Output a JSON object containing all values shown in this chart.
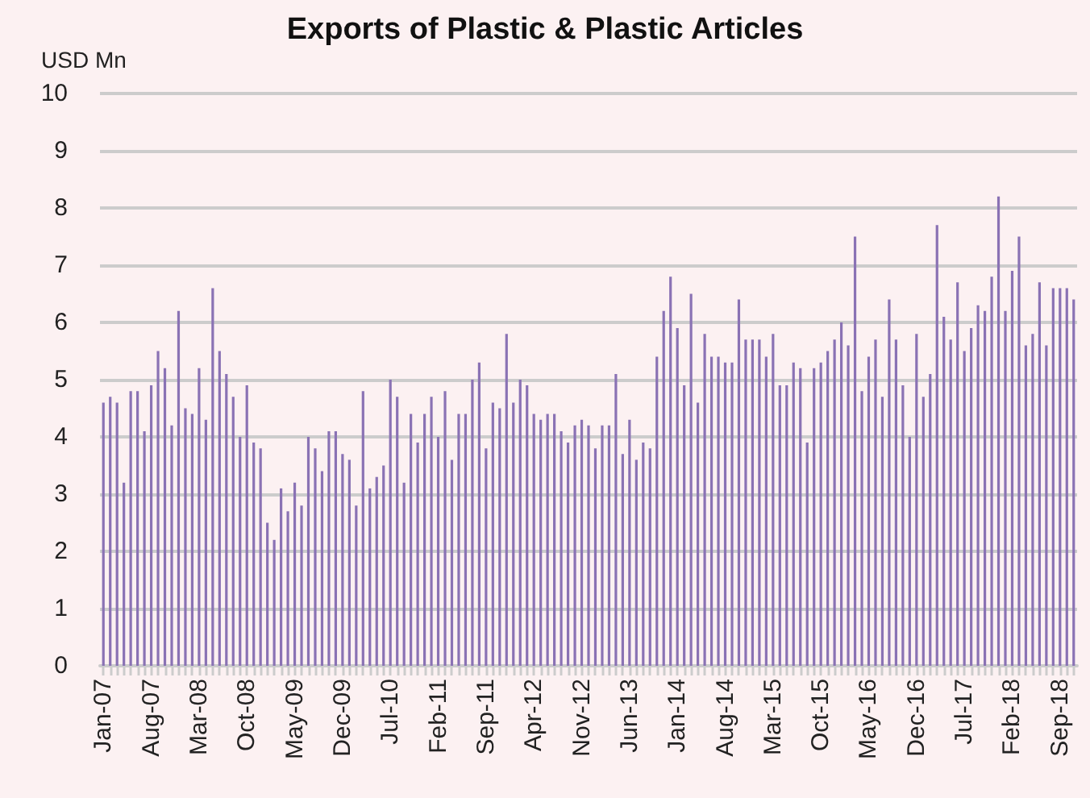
{
  "chart_data": {
    "type": "bar",
    "title": "Exports of Plastic & Plastic Articles",
    "ylabel": "USD Mn",
    "categories": [
      "Jan-07",
      null,
      null,
      null,
      null,
      null,
      null,
      "Aug-07",
      null,
      null,
      null,
      null,
      null,
      null,
      "Mar-08",
      null,
      null,
      null,
      null,
      null,
      null,
      "Oct-08",
      null,
      null,
      null,
      null,
      null,
      null,
      "May-09",
      null,
      null,
      null,
      null,
      null,
      null,
      "Dec-09",
      null,
      null,
      null,
      null,
      null,
      null,
      "Jul-10",
      null,
      null,
      null,
      null,
      null,
      null,
      "Feb-11",
      null,
      null,
      null,
      null,
      null,
      null,
      "Sep-11",
      null,
      null,
      null,
      null,
      null,
      null,
      "Apr-12",
      null,
      null,
      null,
      null,
      null,
      null,
      "Nov-12",
      null,
      null,
      null,
      null,
      null,
      null,
      "Jun-13",
      null,
      null,
      null,
      null,
      null,
      null,
      "Jan-14",
      null,
      null,
      null,
      null,
      null,
      null,
      "Aug-14",
      null,
      null,
      null,
      null,
      null,
      null,
      "Mar-15",
      null,
      null,
      null,
      null,
      null,
      null,
      "Oct-15",
      null,
      null,
      null,
      null,
      null,
      null,
      "May-16",
      null,
      null,
      null,
      null,
      null,
      null,
      "Dec-16",
      null,
      null,
      null,
      null,
      null,
      null,
      "Jul-17",
      null,
      null,
      null,
      null,
      null,
      null,
      "Feb-18",
      null,
      null,
      null,
      null,
      null,
      null,
      "Sep-18",
      null,
      null
    ],
    "values": [
      4.6,
      4.7,
      4.6,
      3.2,
      4.8,
      4.8,
      4.1,
      4.9,
      5.5,
      5.2,
      4.2,
      6.2,
      4.5,
      4.4,
      5.2,
      4.3,
      6.6,
      5.5,
      5.1,
      4.7,
      4.0,
      4.9,
      3.9,
      3.8,
      2.5,
      2.2,
      3.1,
      2.7,
      3.2,
      2.8,
      4.0,
      3.8,
      3.4,
      4.1,
      4.1,
      3.7,
      3.6,
      2.8,
      4.8,
      3.1,
      3.3,
      3.5,
      5.0,
      4.7,
      3.2,
      4.4,
      3.9,
      4.4,
      4.7,
      4.0,
      4.8,
      3.6,
      4.4,
      4.4,
      5.0,
      5.3,
      3.8,
      4.6,
      4.5,
      5.8,
      4.6,
      5.0,
      4.9,
      4.4,
      4.3,
      4.4,
      4.4,
      4.1,
      3.9,
      4.2,
      4.3,
      4.2,
      3.8,
      4.2,
      4.2,
      5.1,
      3.7,
      4.3,
      3.6,
      3.9,
      3.8,
      5.4,
      6.2,
      6.8,
      5.9,
      4.9,
      6.5,
      4.6,
      5.8,
      5.4,
      5.4,
      5.3,
      5.3,
      6.4,
      5.7,
      5.7,
      5.7,
      5.4,
      5.8,
      4.9,
      4.9,
      5.3,
      5.2,
      3.9,
      5.2,
      5.3,
      5.5,
      5.7,
      6.0,
      5.6,
      7.5,
      4.8,
      5.4,
      5.7,
      4.7,
      6.4,
      5.7,
      4.9,
      4.0,
      5.8,
      4.7,
      5.1,
      7.7,
      6.1,
      5.7,
      6.7,
      5.5,
      5.9,
      6.3,
      6.2,
      6.8,
      8.2,
      6.2,
      6.9,
      7.5,
      5.6,
      5.8,
      6.7,
      5.6,
      6.6,
      6.6,
      6.6,
      6.4
    ],
    "color": "#8a72b4",
    "ylim": [
      0,
      10
    ],
    "yticks": [
      0,
      1,
      2,
      3,
      4,
      5,
      6,
      7,
      8,
      9,
      10
    ],
    "grid": "y"
  }
}
